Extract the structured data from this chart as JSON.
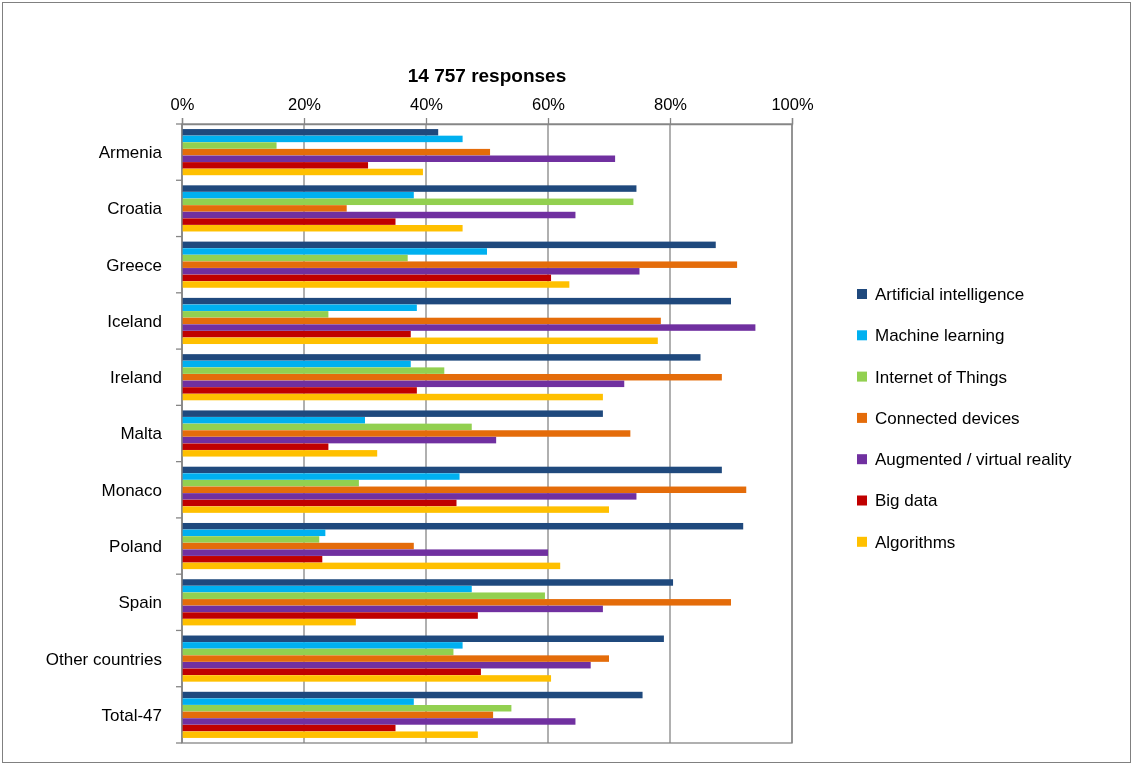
{
  "chart_data": {
    "type": "bar",
    "orientation": "horizontal",
    "title": "14 757 responses",
    "categories": [
      "Armenia",
      "Croatia",
      "Greece",
      "Iceland",
      "Ireland",
      "Malta",
      "Monaco",
      "Poland",
      "Spain",
      "Other countries",
      "Total-47"
    ],
    "series": [
      {
        "name": "Artificial intelligence",
        "color": "#1f497d",
        "values": [
          42,
          74.5,
          87.5,
          90,
          85,
          69,
          88.5,
          92,
          80.5,
          79,
          75.5
        ]
      },
      {
        "name": "Machine learning",
        "color": "#00b0f0",
        "values": [
          46,
          38,
          50,
          38.5,
          37.5,
          30,
          45.5,
          23.5,
          47.5,
          46,
          38
        ]
      },
      {
        "name": "Internet of Things",
        "color": "#92d050",
        "values": [
          15.5,
          74,
          37,
          24,
          43,
          47.5,
          29,
          22.5,
          59.5,
          44.5,
          54
        ]
      },
      {
        "name": "Connected devices",
        "color": "#e46c0a",
        "values": [
          50.5,
          27,
          91,
          78.5,
          88.5,
          73.5,
          92.5,
          38,
          90,
          70,
          51
        ]
      },
      {
        "name": "Augmented / virtual reality",
        "color": "#7030a0",
        "values": [
          71,
          64.5,
          75,
          94,
          72.5,
          51.5,
          74.5,
          60,
          69,
          67,
          64.5
        ]
      },
      {
        "name": "Big data",
        "color": "#c00000",
        "values": [
          30.5,
          35,
          60.5,
          37.5,
          38.5,
          24,
          45,
          23,
          48.5,
          49,
          35
        ]
      },
      {
        "name": "Algorithms",
        "color": "#ffc000",
        "values": [
          39.5,
          46,
          63.5,
          78,
          69,
          32,
          70,
          62,
          28.5,
          60.5,
          48.5
        ]
      }
    ],
    "xlim": [
      0,
      100
    ],
    "xticks": [
      {
        "value": 0,
        "label": "0%"
      },
      {
        "value": 20,
        "label": "20%"
      },
      {
        "value": 40,
        "label": "40%"
      },
      {
        "value": 60,
        "label": "60%"
      },
      {
        "value": 80,
        "label": "80%"
      },
      {
        "value": 100,
        "label": "100%"
      }
    ],
    "grid": "x",
    "legend": "right"
  }
}
